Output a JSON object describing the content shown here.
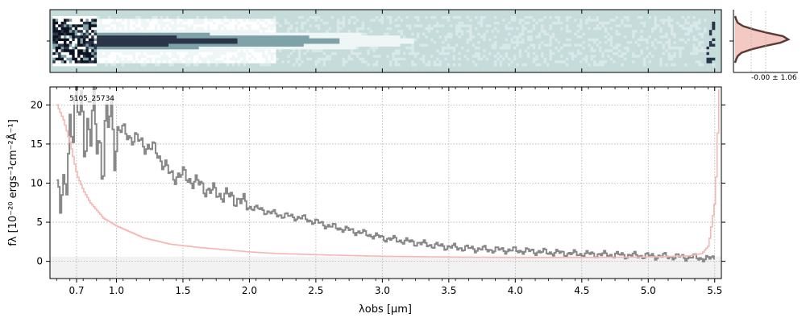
{
  "chart_data": [
    {
      "type": "heatmap",
      "panel": "2d-spectrum",
      "xlim": [
        0.5,
        5.55
      ],
      "trace_row": 0.47,
      "colors": {
        "background": "#c5dcdb",
        "light": "#eef6f6",
        "mid": "#7fa2a8",
        "dark": "#2b3548",
        "darkest": "#0d1220"
      }
    },
    {
      "type": "line",
      "panel": "profile",
      "annotation": "-0.00 ± 1.06",
      "profile": [
        0,
        0.02,
        0.05,
        0.15,
        0.35,
        0.6,
        0.9,
        1.0,
        0.85,
        0.55,
        0.3,
        0.12,
        0.05,
        0.02,
        0
      ],
      "colors": {
        "fill": "#f5c9c3",
        "line": "#5a3c36"
      }
    },
    {
      "type": "line",
      "panel": "1d-spectrum",
      "title": "5105_25734",
      "xlabel": "λobs [μm]",
      "ylabel": "fλ [10⁻²⁰ ergs⁻¹cm⁻²Å⁻¹]",
      "xlim": [
        0.5,
        5.55
      ],
      "ylim": [
        -2.2,
        22.3
      ],
      "x_tick_labels": [
        "0.7",
        "1.0",
        "1.5",
        "2.0",
        "2.5",
        "3.0",
        "3.5",
        "4.0",
        "4.5",
        "5.0",
        "5.5"
      ],
      "x_ticks": [
        0.7,
        1.0,
        1.5,
        2.0,
        2.5,
        3.0,
        3.5,
        4.0,
        4.5,
        5.0,
        5.5
      ],
      "y_ticks": [
        0,
        5,
        10,
        15,
        20
      ],
      "grid": true,
      "series": [
        {
          "color": "#888888",
          "x": [
            0.55,
            0.6,
            0.65,
            0.7,
            0.75,
            0.8,
            0.85,
            0.9,
            0.95,
            1.0,
            1.1,
            1.2,
            1.3,
            1.4,
            1.5,
            1.6,
            1.7,
            1.8,
            1.9,
            2.0,
            2.2,
            2.4,
            2.6,
            2.8,
            3.0,
            3.2,
            3.4,
            3.6,
            3.8,
            4.0,
            4.2,
            4.4,
            4.6,
            4.8,
            5.0,
            5.2,
            5.35,
            5.45,
            5.5
          ],
          "y": [
            10,
            5,
            20,
            18,
            19,
            16,
            17,
            14,
            18,
            17,
            16,
            15,
            14,
            11,
            11,
            10,
            9,
            8.5,
            8,
            7,
            6,
            5.5,
            4.5,
            3.8,
            3.0,
            2.5,
            2.0,
            1.7,
            1.5,
            1.4,
            1.2,
            1.0,
            0.9,
            0.8,
            0.7,
            0.6,
            0.5,
            0.3,
            0.5
          ]
        },
        {
          "color": "#f5b8b5",
          "x": [
            0.55,
            0.6,
            0.65,
            0.7,
            0.75,
            0.8,
            0.9,
            1.0,
            1.2,
            1.4,
            1.6,
            1.8,
            2.0,
            2.2,
            2.4,
            2.6,
            3.0,
            3.5,
            4.0,
            4.5,
            5.0,
            5.3,
            5.4,
            5.45,
            5.5,
            5.53
          ],
          "y": [
            20,
            18,
            15,
            11,
            9,
            7.5,
            5.5,
            4.5,
            3.0,
            2.2,
            1.8,
            1.5,
            1.2,
            1.0,
            0.9,
            0.8,
            0.65,
            0.55,
            0.5,
            0.5,
            0.55,
            0.7,
            1.0,
            2.0,
            8.0,
            22.0
          ]
        }
      ]
    }
  ]
}
